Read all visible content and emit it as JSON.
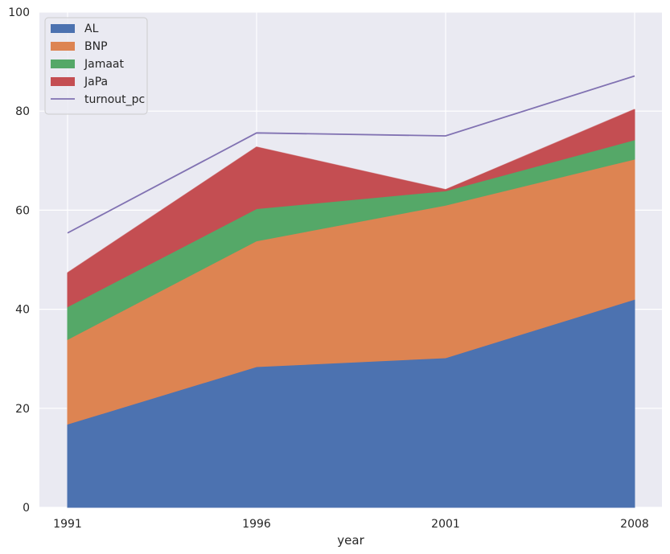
{
  "chart_data": {
    "type": "area",
    "stacked": true,
    "title": "",
    "xlabel": "year",
    "ylabel": "",
    "x": [
      "1991",
      "1996",
      "2001",
      "2008"
    ],
    "ylim": [
      0,
      100
    ],
    "yticks": [
      0,
      20,
      40,
      60,
      80,
      100
    ],
    "grid": true,
    "legend_position": "top-left",
    "series": [
      {
        "name": "AL",
        "values": [
          16.8,
          28.4,
          30.2,
          42.0
        ],
        "color": "#4c72b0"
      },
      {
        "name": "BNP",
        "values": [
          17.1,
          25.4,
          30.8,
          28.3
        ],
        "color": "#dd8452"
      },
      {
        "name": "Jamaat",
        "values": [
          6.6,
          6.5,
          2.9,
          3.9
        ],
        "color": "#55a868"
      },
      {
        "name": "JaPa",
        "values": [
          6.8,
          12.4,
          0.2,
          6.1
        ],
        "color": "#c44e52"
      }
    ],
    "line_series": [
      {
        "name": "turnout_pc",
        "values": [
          55.4,
          75.6,
          75.0,
          87.1
        ],
        "color": "#8172b2"
      }
    ]
  }
}
